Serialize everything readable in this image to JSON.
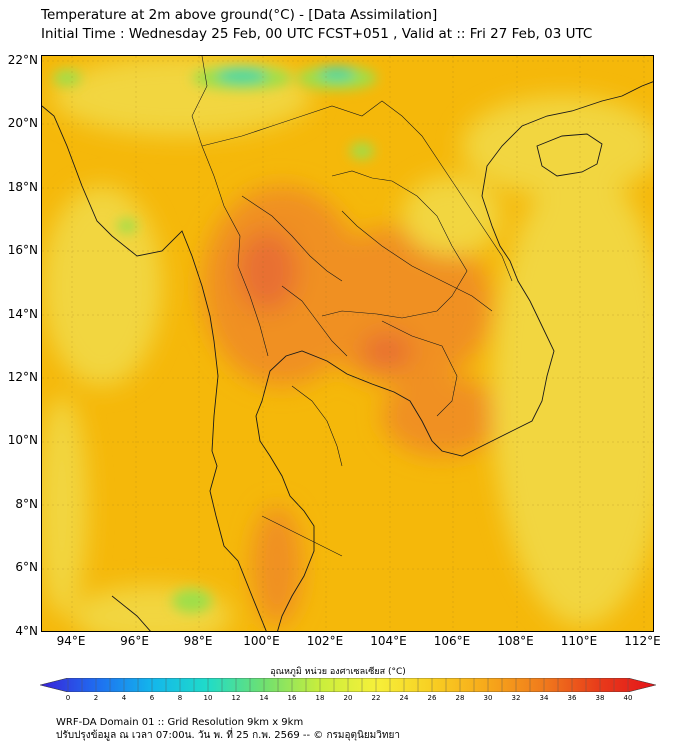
{
  "header": {
    "title_line1": "Temperature at 2m above ground(°C) - [Data Assimilation]",
    "title_line2": "Initial Time : Wednesday 25 Feb, 00 UTC FCST+051 , Valid at :: Fri 27 Feb, 03 UTC"
  },
  "map": {
    "lat_labels": [
      "22°N",
      "20°N",
      "18°N",
      "16°N",
      "14°N",
      "12°N",
      "10°N",
      "8°N",
      "6°N",
      "4°N"
    ],
    "lon_labels": [
      "94°E",
      "96°E",
      "98°E",
      "100°E",
      "102°E",
      "104°E",
      "106°E",
      "108°E",
      "110°E",
      "112°E"
    ],
    "lat_range": [
      4,
      22.2
    ],
    "lon_range": [
      93,
      112.3
    ],
    "colors": {
      "base": "#f5b80a",
      "warm": "#f09020",
      "hot": "#e87030",
      "cool": "#f2d640",
      "cooler": "#9edf4a",
      "cold": "#4fd7a0",
      "border": "#1a1a1a"
    }
  },
  "colorbar": {
    "title": "อุณหภูมิ หน่วย องศาเซลเซียส (°C)",
    "ticks": [
      "0",
      "2",
      "4",
      "6",
      "8",
      "10",
      "12",
      "14",
      "16",
      "18",
      "20",
      "22",
      "24",
      "26",
      "28",
      "30",
      "32",
      "34",
      "36",
      "38",
      "40"
    ],
    "stops": [
      "#3a22d8",
      "#1f6cf0",
      "#13b6ec",
      "#20dcc8",
      "#6fe070",
      "#c9ee3c",
      "#f6f03a",
      "#f8cf22",
      "#f7a81a",
      "#f07a1c",
      "#e83a1a",
      "#e4141a"
    ]
  },
  "footer": {
    "line1": "WRF-DA Domain 01 :: Grid Resolution 9km x 9km",
    "line2": "ปรับปรุงข้อมูล ณ เวลา 07:00น. วัน พ. ที่ 25 ก.พ. 2569 -- © กรมอุตุนิยมวิทยา"
  }
}
